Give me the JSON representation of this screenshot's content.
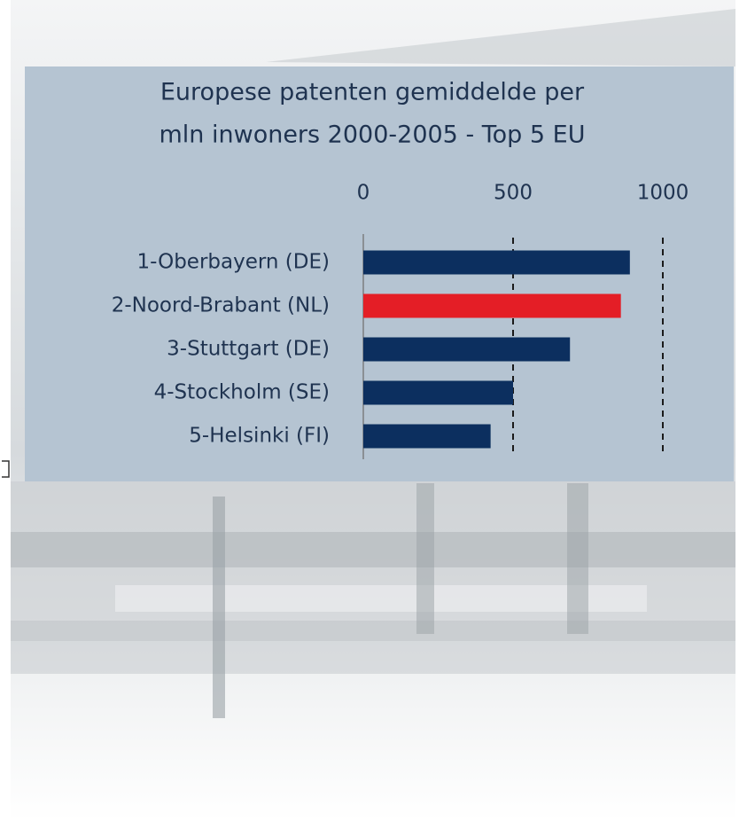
{
  "chart_data": {
    "type": "bar",
    "orientation": "horizontal",
    "title": [
      "Europese patenten gemiddelde per",
      "mln inwoners 2000-2005 - Top 5 EU"
    ],
    "categories": [
      "1-Oberbayern (DE)",
      "2-Noord-Brabant (NL)",
      "3-Stuttgart (DE)",
      "4-Stockholm (SE)",
      "5-Helsinki (FI)"
    ],
    "values": [
      890,
      860,
      690,
      500,
      425
    ],
    "colors": [
      "#0c2f5f",
      "#e41e26",
      "#0c2f5f",
      "#0c2f5f",
      "#0c2f5f"
    ],
    "xlim": [
      0,
      1000
    ],
    "xticks": [
      0,
      500,
      1000
    ],
    "grid": true
  }
}
